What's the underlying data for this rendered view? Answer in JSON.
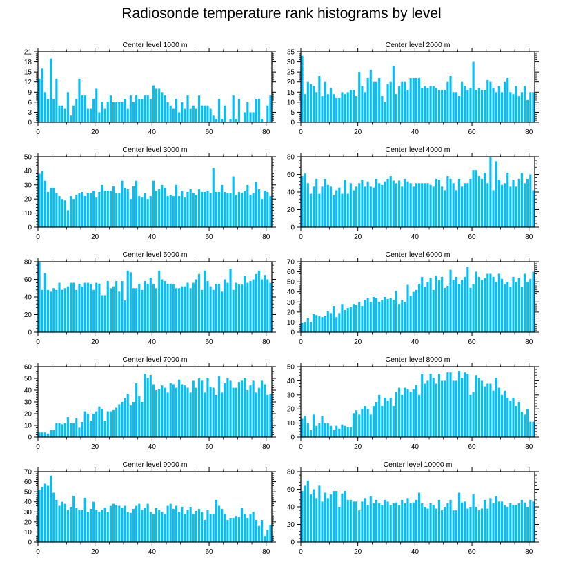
{
  "title": "Radiosonde temperature rank histograms by level",
  "colors": {
    "bar": "#00bfff",
    "axis": "#000000",
    "background": "#ffffff"
  },
  "chart_data": [
    {
      "type": "bar",
      "title": "Center level 1000 m",
      "xlim": [
        0,
        82
      ],
      "ylim": [
        0,
        21
      ],
      "xticks": [
        0,
        20,
        40,
        60,
        80
      ],
      "yticks": [
        0,
        3,
        6,
        9,
        12,
        15,
        18,
        21
      ],
      "values": [
        13,
        16,
        9,
        7,
        19,
        7,
        13,
        5,
        5,
        4,
        9,
        2,
        5,
        7,
        13,
        8,
        8,
        4,
        4,
        7,
        10,
        3,
        6,
        4,
        6,
        8,
        6,
        6,
        6,
        6,
        7,
        4,
        8,
        6,
        8,
        7,
        7,
        8,
        8,
        7,
        11,
        10,
        10,
        9,
        8,
        6,
        5,
        4,
        7,
        3,
        6,
        4,
        8,
        4,
        5,
        4,
        8,
        5,
        5,
        5,
        4,
        2,
        1,
        7,
        1,
        5,
        0,
        1,
        8,
        1,
        7,
        0,
        3,
        6,
        3,
        3,
        7,
        7,
        1,
        0,
        5,
        8
      ]
    },
    {
      "type": "bar",
      "title": "Center level 2000 m",
      "xlim": [
        0,
        82
      ],
      "ylim": [
        0,
        35
      ],
      "xticks": [
        0,
        20,
        40,
        60,
        80
      ],
      "yticks": [
        0,
        5,
        10,
        15,
        20,
        25,
        30,
        35
      ],
      "values": [
        33,
        14,
        20,
        19,
        18,
        15,
        23,
        13,
        20,
        14,
        17,
        14,
        12,
        12,
        15,
        14,
        15,
        16,
        16,
        13,
        25,
        18,
        15,
        22,
        26,
        20,
        20,
        22,
        13,
        10,
        19,
        20,
        28,
        14,
        18,
        20,
        20,
        16,
        22,
        22,
        22,
        22,
        17,
        18,
        17,
        18,
        18,
        17,
        16,
        16,
        16,
        20,
        23,
        15,
        15,
        13,
        20,
        18,
        16,
        17,
        30,
        16,
        17,
        16,
        16,
        21,
        20,
        17,
        15,
        18,
        15,
        20,
        22,
        15,
        14,
        18,
        13,
        15,
        18,
        11,
        15,
        15
      ]
    },
    {
      "type": "bar",
      "title": "Center level 3000 m",
      "xlim": [
        0,
        82
      ],
      "ylim": [
        0,
        50
      ],
      "xticks": [
        0,
        20,
        40,
        60,
        80
      ],
      "yticks": [
        0,
        10,
        20,
        30,
        40,
        50
      ],
      "values": [
        38,
        40,
        33,
        25,
        28,
        28,
        24,
        22,
        20,
        19,
        12,
        22,
        20,
        23,
        24,
        25,
        22,
        24,
        24,
        26,
        21,
        25,
        30,
        26,
        26,
        26,
        29,
        24,
        24,
        33,
        28,
        27,
        20,
        29,
        33,
        22,
        21,
        24,
        20,
        22,
        33,
        26,
        27,
        30,
        28,
        22,
        23,
        22,
        30,
        22,
        26,
        21,
        25,
        27,
        24,
        23,
        27,
        25,
        25,
        26,
        24,
        42,
        25,
        25,
        30,
        25,
        24,
        24,
        36,
        23,
        25,
        24,
        26,
        30,
        23,
        24,
        32,
        27,
        20,
        26,
        25,
        22
      ]
    },
    {
      "type": "bar",
      "title": "Center level 4000 m",
      "xlim": [
        0,
        82
      ],
      "ylim": [
        0,
        80
      ],
      "xticks": [
        0,
        20,
        40,
        60,
        80
      ],
      "yticks": [
        0,
        20,
        40,
        60,
        80
      ],
      "values": [
        58,
        61,
        50,
        38,
        46,
        55,
        38,
        46,
        55,
        48,
        46,
        36,
        42,
        45,
        38,
        54,
        38,
        50,
        42,
        46,
        50,
        54,
        46,
        52,
        46,
        45,
        55,
        50,
        48,
        52,
        55,
        58,
        53,
        50,
        53,
        46,
        55,
        52,
        50,
        46,
        50,
        50,
        50,
        50,
        50,
        48,
        46,
        55,
        54,
        46,
        42,
        58,
        55,
        50,
        42,
        55,
        46,
        50,
        50,
        55,
        65,
        65,
        58,
        55,
        62,
        50,
        80,
        42,
        75,
        54,
        48,
        50,
        62,
        46,
        54,
        46,
        55,
        62,
        50,
        55,
        60,
        42
      ]
    },
    {
      "type": "bar",
      "title": "Center level 5000 m",
      "xlim": [
        0,
        82
      ],
      "ylim": [
        0,
        80
      ],
      "xticks": [
        0,
        20,
        40,
        60,
        80
      ],
      "yticks": [
        0,
        20,
        40,
        60,
        80
      ],
      "values": [
        80,
        48,
        67,
        48,
        46,
        50,
        48,
        56,
        48,
        50,
        52,
        56,
        56,
        48,
        55,
        52,
        56,
        56,
        55,
        48,
        56,
        55,
        42,
        42,
        58,
        50,
        52,
        58,
        46,
        58,
        36,
        70,
        68,
        50,
        50,
        55,
        48,
        58,
        55,
        62,
        55,
        50,
        70,
        60,
        58,
        55,
        55,
        54,
        50,
        50,
        52,
        52,
        56,
        50,
        56,
        60,
        66,
        48,
        70,
        58,
        52,
        48,
        55,
        55,
        46,
        60,
        56,
        72,
        48,
        56,
        54,
        54,
        64,
        56,
        58,
        60,
        66,
        70,
        60,
        65,
        60,
        56
      ]
    },
    {
      "type": "bar",
      "title": "Center level 6000 m",
      "xlim": [
        0,
        82
      ],
      "ylim": [
        0,
        70
      ],
      "xticks": [
        0,
        20,
        40,
        60,
        80
      ],
      "yticks": [
        0,
        10,
        20,
        30,
        40,
        50,
        60,
        70
      ],
      "values": [
        9,
        10,
        14,
        10,
        18,
        17,
        16,
        15,
        16,
        21,
        19,
        26,
        15,
        19,
        28,
        22,
        24,
        25,
        28,
        27,
        30,
        26,
        32,
        34,
        30,
        35,
        34,
        30,
        32,
        35,
        33,
        34,
        32,
        41,
        28,
        32,
        30,
        47,
        36,
        40,
        42,
        48,
        55,
        45,
        50,
        54,
        42,
        56,
        52,
        55,
        44,
        46,
        62,
        52,
        55,
        48,
        52,
        55,
        65,
        44,
        48,
        60,
        55,
        52,
        54,
        58,
        58,
        55,
        50,
        58,
        53,
        48,
        50,
        45,
        55,
        50,
        54,
        45,
        58,
        50,
        53,
        60
      ]
    },
    {
      "type": "bar",
      "title": "Center level 7000 m",
      "xlim": [
        0,
        82
      ],
      "ylim": [
        0,
        60
      ],
      "xticks": [
        0,
        20,
        40,
        60,
        80
      ],
      "yticks": [
        0,
        10,
        20,
        30,
        40,
        50,
        60
      ],
      "values": [
        4,
        4,
        4,
        3,
        6,
        6,
        12,
        12,
        11,
        12,
        17,
        12,
        12,
        16,
        8,
        13,
        22,
        20,
        14,
        20,
        22,
        26,
        24,
        14,
        22,
        22,
        23,
        25,
        28,
        30,
        33,
        37,
        27,
        30,
        46,
        35,
        30,
        54,
        50,
        53,
        45,
        40,
        41,
        44,
        42,
        38,
        46,
        45,
        42,
        49,
        45,
        44,
        42,
        38,
        48,
        42,
        50,
        48,
        38,
        50,
        43,
        42,
        36,
        52,
        38,
        46,
        50,
        48,
        42,
        42,
        47,
        48,
        50,
        40,
        44,
        48,
        38,
        42,
        48,
        45,
        36,
        37
      ]
    },
    {
      "type": "bar",
      "title": "Center level 8000 m",
      "xlim": [
        0,
        82
      ],
      "ylim": [
        0,
        50
      ],
      "xticks": [
        0,
        20,
        40,
        60,
        80
      ],
      "yticks": [
        0,
        10,
        20,
        30,
        40,
        50
      ],
      "values": [
        13,
        15,
        10,
        5,
        16,
        8,
        10,
        15,
        10,
        10,
        8,
        5,
        8,
        6,
        9,
        8,
        7,
        7,
        17,
        19,
        16,
        20,
        22,
        20,
        16,
        22,
        25,
        30,
        22,
        28,
        26,
        28,
        22,
        32,
        35,
        30,
        35,
        34,
        32,
        34,
        37,
        30,
        45,
        38,
        40,
        45,
        42,
        38,
        45,
        40,
        40,
        46,
        46,
        40,
        40,
        47,
        42,
        46,
        45,
        30,
        32,
        44,
        42,
        40,
        36,
        38,
        38,
        33,
        42,
        35,
        30,
        33,
        28,
        26,
        28,
        22,
        25,
        18,
        16,
        20,
        11,
        11
      ]
    },
    {
      "type": "bar",
      "title": "Center level 9000 m",
      "xlim": [
        0,
        82
      ],
      "ylim": [
        0,
        70
      ],
      "xticks": [
        0,
        20,
        40,
        60,
        80
      ],
      "yticks": [
        0,
        10,
        20,
        30,
        40,
        50,
        60,
        70
      ],
      "values": [
        52,
        55,
        58,
        56,
        66,
        49,
        42,
        36,
        40,
        38,
        32,
        35,
        46,
        34,
        32,
        32,
        44,
        30,
        33,
        40,
        32,
        30,
        32,
        34,
        30,
        36,
        38,
        37,
        36,
        34,
        36,
        30,
        29,
        33,
        36,
        38,
        32,
        34,
        38,
        30,
        28,
        34,
        32,
        30,
        28,
        36,
        38,
        33,
        36,
        30,
        35,
        28,
        32,
        35,
        28,
        31,
        33,
        30,
        22,
        32,
        28,
        28,
        42,
        36,
        33,
        28,
        22,
        24,
        24,
        26,
        25,
        34,
        28,
        24,
        28,
        30,
        22,
        16,
        22,
        6,
        12,
        17
      ]
    },
    {
      "type": "bar",
      "title": "Center level 10000 m",
      "xlim": [
        0,
        82
      ],
      "ylim": [
        0,
        80
      ],
      "xticks": [
        0,
        20,
        40,
        60,
        80
      ],
      "yticks": [
        0,
        20,
        40,
        60,
        80
      ],
      "values": [
        58,
        64,
        70,
        54,
        60,
        50,
        64,
        46,
        56,
        50,
        54,
        58,
        58,
        40,
        55,
        58,
        48,
        48,
        46,
        46,
        36,
        46,
        50,
        42,
        52,
        44,
        48,
        44,
        42,
        48,
        46,
        42,
        44,
        45,
        42,
        48,
        44,
        50,
        44,
        45,
        48,
        56,
        44,
        40,
        38,
        44,
        42,
        38,
        48,
        36,
        40,
        44,
        48,
        36,
        36,
        56,
        45,
        46,
        38,
        40,
        54,
        40,
        36,
        38,
        48,
        38,
        50,
        44,
        52,
        46,
        46,
        42,
        40,
        44,
        42,
        42,
        44,
        48,
        45,
        40,
        48,
        46
      ]
    }
  ]
}
